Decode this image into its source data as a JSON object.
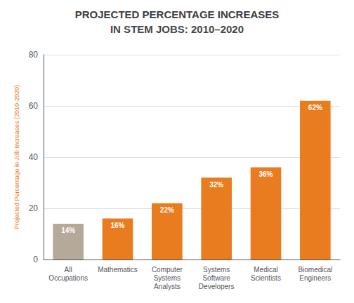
{
  "chart_data": {
    "type": "bar",
    "title": "PROJECTED PERCENTAGE INCREASES",
    "subtitle": "IN STEM JOBS: 2010–2020",
    "y_label": "Projected Percentage in Job Increases (2010-2020)",
    "categories": [
      "All\nOccupations",
      "Mathematics",
      "Computer\nSystems\nAnalysts",
      "Systems\nSoftware\nDevelopers",
      "Medical\nScientists",
      "Biomedical\nEngineers"
    ],
    "values": [
      14,
      16,
      22,
      32,
      36,
      62
    ],
    "value_labels": [
      "14%",
      "16%",
      "22%",
      "32%",
      "36%",
      "62%"
    ],
    "colors": [
      "#b5a99a",
      "#e87c1e",
      "#e87c1e",
      "#e87c1e",
      "#e87c1e",
      "#e87c1e"
    ],
    "ylim": [
      0,
      80
    ],
    "yticks": [
      0,
      20,
      40,
      60,
      80
    ],
    "grid": true,
    "data_labels": true
  }
}
